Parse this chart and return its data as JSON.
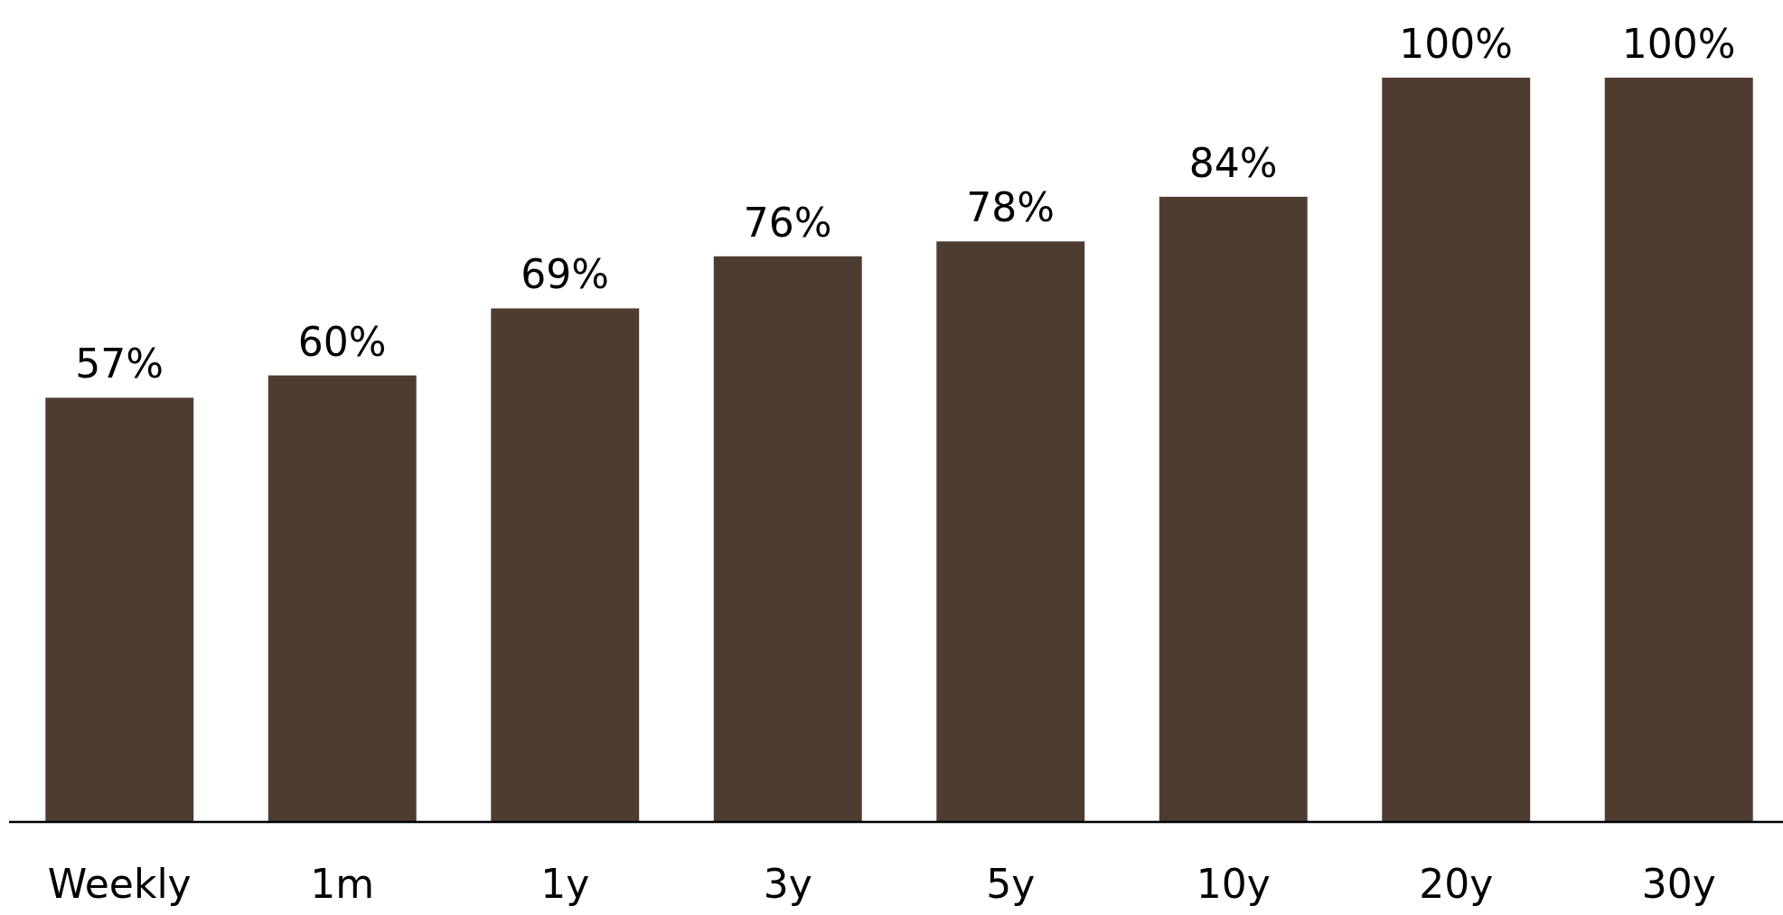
{
  "chart_data": {
    "type": "bar",
    "categories": [
      "Weekly",
      "1m",
      "1y",
      "3y",
      "5y",
      "10y",
      "20y",
      "30y"
    ],
    "values": [
      57,
      60,
      69,
      76,
      78,
      84,
      100,
      100
    ],
    "value_labels": [
      "57%",
      "60%",
      "69%",
      "76%",
      "78%",
      "84%",
      "100%",
      "100%"
    ],
    "color": "#4e3c31",
    "ylim": [
      0,
      100
    ],
    "tick_labels": "x"
  }
}
